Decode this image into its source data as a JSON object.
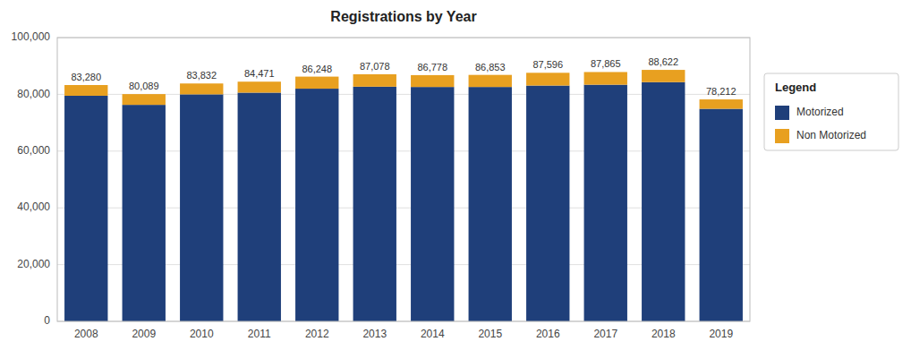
{
  "chart_data": {
    "type": "bar",
    "stacked": true,
    "title": "Registrations by Year",
    "categories": [
      "2008",
      "2009",
      "2010",
      "2011",
      "2012",
      "2013",
      "2014",
      "2015",
      "2016",
      "2017",
      "2018",
      "2019"
    ],
    "series": [
      {
        "name": "Motorized",
        "color": "#1F3F7A",
        "values": [
          79500,
          76300,
          80000,
          80600,
          82000,
          82700,
          82600,
          82600,
          83100,
          83400,
          84300,
          74900
        ]
      },
      {
        "name": "Non Motorized",
        "color": "#E8A020",
        "values": [
          3780,
          3789,
          3832,
          3871,
          4248,
          4378,
          4178,
          4253,
          4496,
          4465,
          4322,
          3312
        ]
      }
    ],
    "totals": [
      83280,
      80089,
      83832,
      84471,
      86248,
      87078,
      86778,
      86853,
      87596,
      87865,
      88622,
      78212
    ],
    "totals_labels": [
      "83,280",
      "80,089",
      "83,832",
      "84,471",
      "86,248",
      "87,078",
      "86,778",
      "86,853",
      "87,596",
      "87,865",
      "88,622",
      "78,212"
    ],
    "ylim": [
      0,
      100000
    ],
    "yticks": [
      0,
      {
        "value": 20000,
        "label": "20,000"
      },
      {
        "value": 40000,
        "label": "40,000"
      },
      {
        "value": 60000,
        "label": "60,000"
      },
      {
        "value": 80000,
        "label": "80,000"
      },
      {
        "value": 100000,
        "label": "100,000"
      }
    ],
    "grid": true,
    "legend_title": "Legend",
    "legend": "right"
  }
}
